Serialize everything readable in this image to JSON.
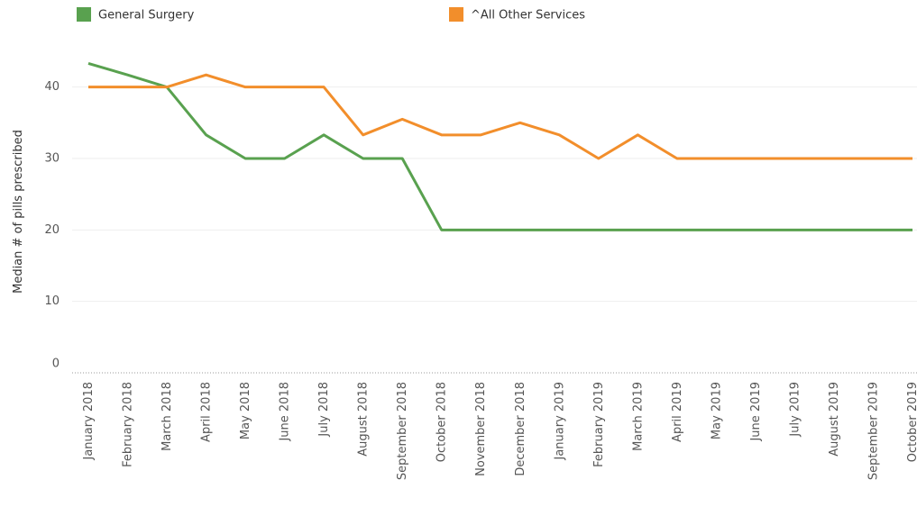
{
  "chart_data": {
    "type": "line",
    "y_label": "Median # of pills prescribed",
    "categories": [
      "January 2018",
      "February 2018",
      "March 2018",
      "April 2018",
      "May 2018",
      "June 2018",
      "July 2018",
      "August 2018",
      "September 2018",
      "October 2018",
      "November 2018",
      "December 2018",
      "January 2019",
      "February 2019",
      "March 2019",
      "April 2019",
      "May 2019",
      "June 2019",
      "July 2019",
      "August 2019",
      "September 2019",
      "October 2019"
    ],
    "series": [
      {
        "name": "General Surgery",
        "color": "#59a14f",
        "values": [
          43.3,
          41.7,
          40,
          33.3,
          30,
          30,
          33.3,
          30,
          30,
          20,
          20,
          20,
          20,
          20,
          20,
          20,
          20,
          20,
          20,
          20,
          20,
          20
        ]
      },
      {
        "name": "^All Other Services",
        "color": "#f28e2b",
        "values": [
          40,
          40,
          40,
          41.7,
          40,
          40,
          40,
          33.3,
          35.5,
          33.3,
          33.3,
          35,
          33.3,
          30,
          33.3,
          30,
          30,
          30,
          30,
          30,
          30,
          30
        ]
      }
    ],
    "ylim": [
      0,
      45
    ],
    "yticks": [
      0,
      10,
      20,
      30,
      40
    ],
    "grid": true
  }
}
